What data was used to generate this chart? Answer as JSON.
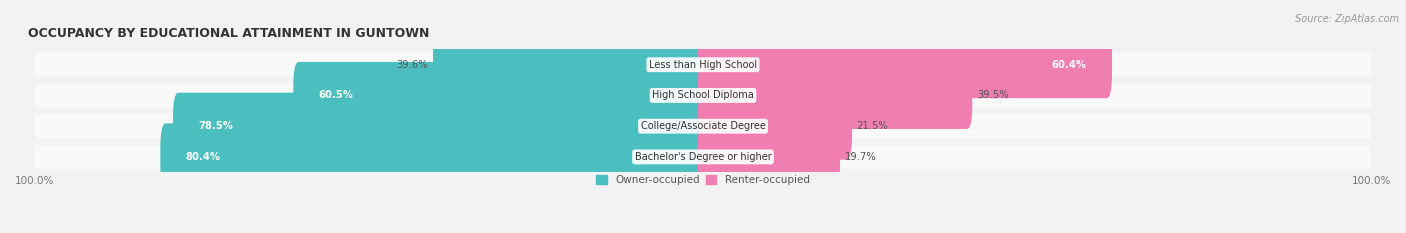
{
  "title": "OCCUPANCY BY EDUCATIONAL ATTAINMENT IN GUNTOWN",
  "source": "Source: ZipAtlas.com",
  "categories": [
    "Less than High School",
    "High School Diploma",
    "College/Associate Degree",
    "Bachelor's Degree or higher"
  ],
  "owner_pct": [
    39.6,
    60.5,
    78.5,
    80.4
  ],
  "renter_pct": [
    60.4,
    39.5,
    21.5,
    19.7
  ],
  "owner_color": "#4BBFBF",
  "renter_color": "#F07EB0",
  "bg_color": "#f2f2f2",
  "row_bg_color": "#e8e8e8",
  "title_fontsize": 9,
  "label_fontsize": 7.5,
  "bar_height": 0.58,
  "legend_owner": "Owner-occupied",
  "legend_renter": "Renter-occupied"
}
